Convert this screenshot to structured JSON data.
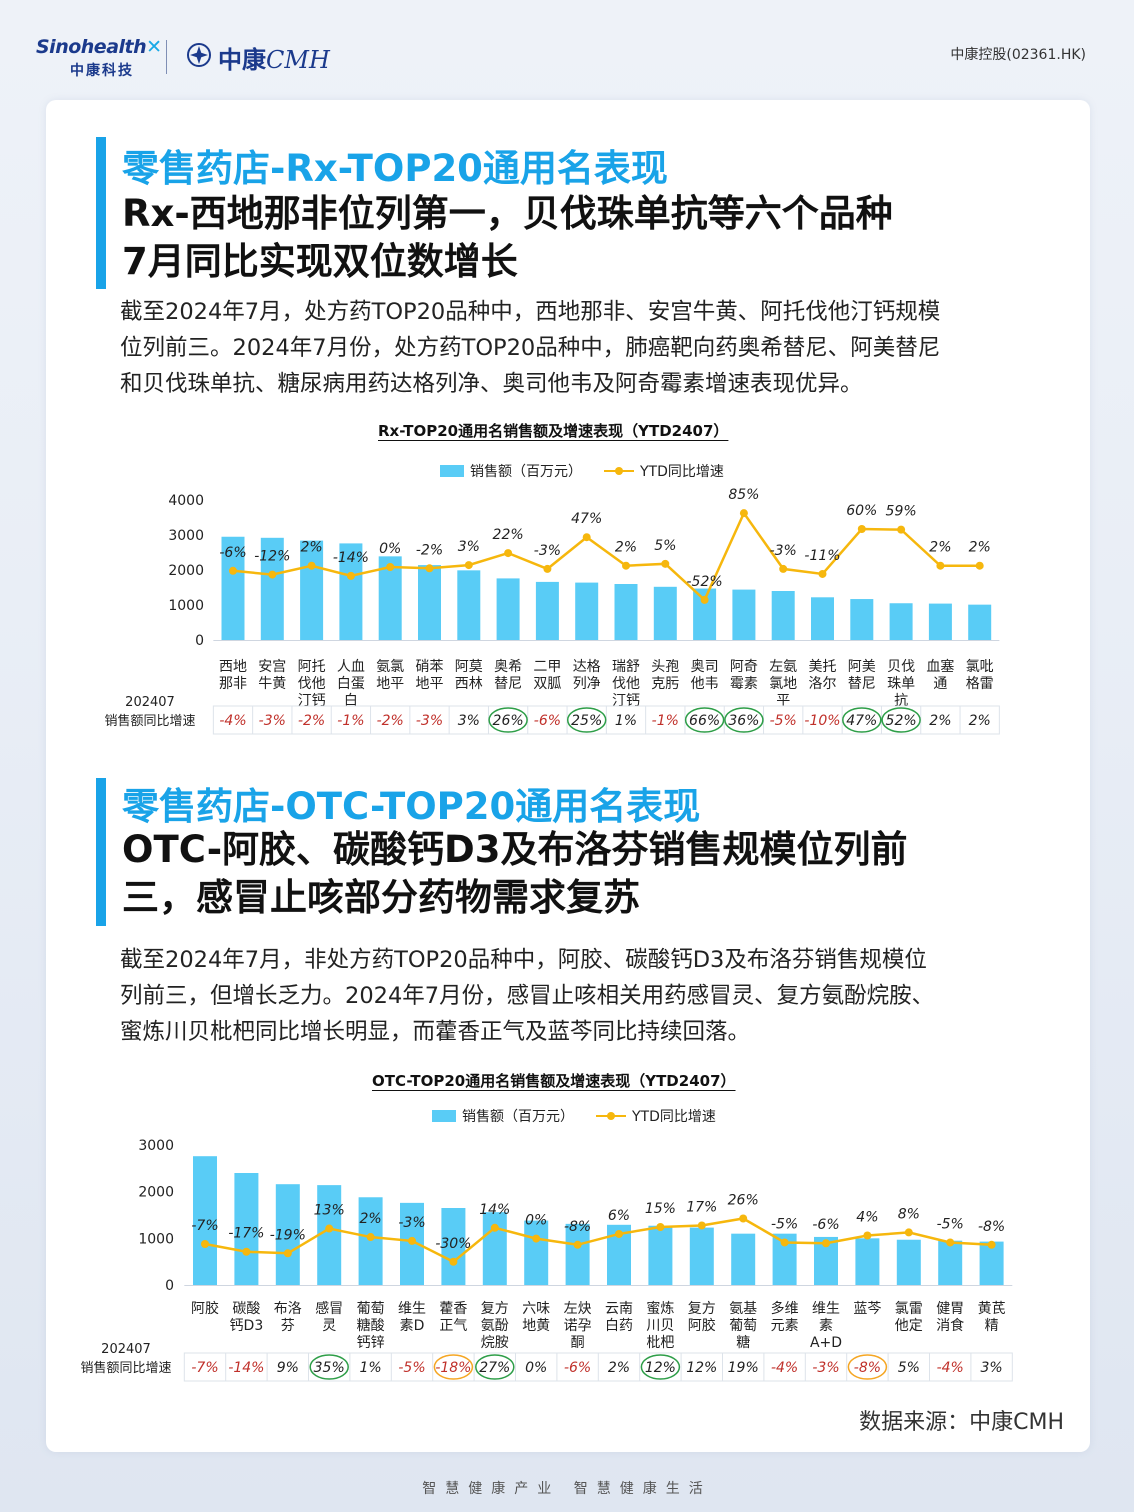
{
  "header": {
    "logo_en": "Sinohealth",
    "logo_cn": "中康科技",
    "logo2_cn": "中康",
    "logo2_en": "CMH",
    "stock": "中康控股(02361.HK)"
  },
  "section1": {
    "subtitle": "零售药店-Rx-TOP20通用名表现",
    "title_lines": [
      "Rx-西地那非位列第一，贝伐珠单抗等六个品种",
      "7月同比实现双位数增长"
    ],
    "para_lines": [
      "截至2024年7月，处方药TOP20品种中，西地那非、安宫牛黄、阿托伐他汀钙规模",
      "位列前三。2024年7月份，处方药TOP20品种中，肺癌靶向药奥希替尼、阿美替尼",
      "和贝伐珠单抗、糖尿病用药达格列净、奥司他韦及阿奇霉素增速表现优异。"
    ]
  },
  "section2": {
    "subtitle": "零售药店-OTC-TOP20通用名表现",
    "title_lines": [
      "OTC-阿胶、碳酸钙D3及布洛芬销售规模位列前",
      "三，感冒止咳部分药物需求复苏"
    ],
    "para_lines": [
      "截至2024年7月，非处方药TOP20品种中，阿胶、碳酸钙D3及布洛芬销售规模位",
      "列前三，但增长乏力。2024年7月份，感冒止咳相关用药感冒灵、复方氨酚烷胺、",
      "蜜炼川贝枇杷同比增长明显，而藿香正气及蓝芩同比持续回落。"
    ]
  },
  "chart_data": [
    {
      "type": "bar",
      "title": "Rx-TOP20通用名销售额及增速表现（YTD2407）",
      "legend": [
        "销售额（百万元）",
        "YTD同比增速"
      ],
      "categories": [
        [
          "西地",
          "那非"
        ],
        [
          "安宫",
          "牛黄"
        ],
        [
          "阿托",
          "伐他",
          "汀钙"
        ],
        [
          "人血",
          "白蛋",
          "白"
        ],
        [
          "氨氯",
          "地平"
        ],
        [
          "硝苯",
          "地平"
        ],
        [
          "阿莫",
          "西林"
        ],
        [
          "奥希",
          "替尼"
        ],
        [
          "二甲",
          "双胍"
        ],
        [
          "达格",
          "列净"
        ],
        [
          "瑞舒",
          "伐他",
          "汀钙"
        ],
        [
          "头孢",
          "克肟"
        ],
        [
          "奥司",
          "他韦"
        ],
        [
          "阿奇",
          "霉素"
        ],
        [
          "左氨",
          "氯地",
          "平"
        ],
        [
          "美托",
          "洛尔"
        ],
        [
          "阿美",
          "替尼"
        ],
        [
          "贝伐",
          "珠单",
          "抗"
        ],
        [
          "血塞",
          "通"
        ],
        [
          "氯吡",
          "格雷"
        ]
      ],
      "values": [
        2950,
        2920,
        2840,
        2760,
        2390,
        2140,
        1990,
        1760,
        1660,
        1640,
        1600,
        1520,
        1470,
        1440,
        1400,
        1220,
        1170,
        1050,
        1040,
        1010
      ],
      "growth": [
        -6,
        -12,
        2,
        -14,
        0,
        -2,
        3,
        22,
        -3,
        47,
        2,
        5,
        -52,
        85,
        -3,
        -11,
        60,
        59,
        2,
        2
      ],
      "growth_labels": [
        "-6%",
        "-12%",
        "2%",
        "-14%",
        "0%",
        "-2%",
        "3%",
        "22%",
        "-3%",
        "47%",
        "2%",
        "5%",
        "-52%",
        "85%",
        "-3%",
        "-11%",
        "60%",
        "59%",
        "2%",
        "2%"
      ],
      "ylim": [
        0,
        4000
      ],
      "yticks": [
        "0",
        "1000",
        "2000",
        "3000",
        "4000"
      ],
      "row_label": [
        "202407",
        "销售额同比增速"
      ],
      "month_growth": [
        "-4%",
        "-3%",
        "-2%",
        "-1%",
        "-2%",
        "-3%",
        "3%",
        "26%",
        "-6%",
        "25%",
        "1%",
        "-1%",
        "66%",
        "36%",
        "-5%",
        "-10%",
        "47%",
        "52%",
        "2%",
        "2%"
      ],
      "circled": [
        "",
        "",
        "",
        "",
        "",
        "",
        "",
        "green",
        "",
        "green",
        "",
        "",
        "green",
        "green",
        "",
        "",
        "green",
        "green",
        "",
        ""
      ],
      "colors": {
        "bar": "#59ccf6",
        "line": "#f6b70d",
        "neg": "#c0302a",
        "green": "#2e9e48",
        "orange": "#f5a623"
      }
    },
    {
      "type": "bar",
      "title": "OTC-TOP20通用名销售额及增速表现（YTD2407）",
      "legend": [
        "销售额（百万元）",
        "YTD同比增速"
      ],
      "categories": [
        [
          "阿胶"
        ],
        [
          "碳酸",
          "钙D3"
        ],
        [
          "布洛",
          "芬"
        ],
        [
          "感冒",
          "灵"
        ],
        [
          "葡萄",
          "糖酸",
          "钙锌"
        ],
        [
          "维生",
          "素D"
        ],
        [
          "藿香",
          "正气"
        ],
        [
          "复方",
          "氨酚",
          "烷胺"
        ],
        [
          "六味",
          "地黄"
        ],
        [
          "左炔",
          "诺孕",
          "酮"
        ],
        [
          "云南",
          "白药"
        ],
        [
          "蜜炼",
          "川贝",
          "枇杷"
        ],
        [
          "复方",
          "阿胶"
        ],
        [
          "氨基",
          "葡萄",
          "糖"
        ],
        [
          "多维",
          "元素"
        ],
        [
          "维生",
          "素",
          "A+D"
        ],
        [
          "蓝芩"
        ],
        [
          "氯雷",
          "他定"
        ],
        [
          "健胃",
          "消食"
        ],
        [
          "黄芪",
          "精"
        ]
      ],
      "values": [
        2760,
        2400,
        2160,
        2140,
        1880,
        1760,
        1650,
        1560,
        1380,
        1310,
        1290,
        1270,
        1230,
        1100,
        1100,
        1030,
        1000,
        970,
        950,
        930
      ],
      "growth": [
        -7,
        -17,
        -19,
        13,
        2,
        -3,
        -30,
        14,
        0,
        -8,
        6,
        15,
        17,
        26,
        -5,
        -6,
        4,
        8,
        -5,
        -8
      ],
      "growth_labels": [
        "-7%",
        "-17%",
        "-19%",
        "13%",
        "2%",
        "-3%",
        "-30%",
        "14%",
        "0%",
        "-8%",
        "6%",
        "15%",
        "17%",
        "26%",
        "-5%",
        "-6%",
        "4%",
        "8%",
        "-5%",
        "-8%"
      ],
      "ylim": [
        0,
        3000
      ],
      "yticks": [
        "0",
        "1000",
        "2000",
        "3000"
      ],
      "row_label": [
        "202407",
        "销售额同比增速"
      ],
      "month_growth": [
        "-7%",
        "-14%",
        "9%",
        "35%",
        "1%",
        "-5%",
        "-18%",
        "27%",
        "0%",
        "-6%",
        "2%",
        "12%",
        "12%",
        "19%",
        "-4%",
        "-3%",
        "-8%",
        "5%",
        "-4%",
        "3%"
      ],
      "circled": [
        "",
        "",
        "",
        "green",
        "",
        "",
        "orange",
        "green",
        "",
        "",
        "",
        "green",
        "",
        "",
        "",
        "",
        "orange",
        "",
        "",
        ""
      ],
      "colors": {
        "bar": "#59ccf6",
        "line": "#f6b70d",
        "neg": "#c0302a",
        "green": "#2e9e48",
        "orange": "#f5a623"
      }
    }
  ],
  "source": "数据来源：中康CMH",
  "footer": "智慧健康产业  智慧健康生活"
}
